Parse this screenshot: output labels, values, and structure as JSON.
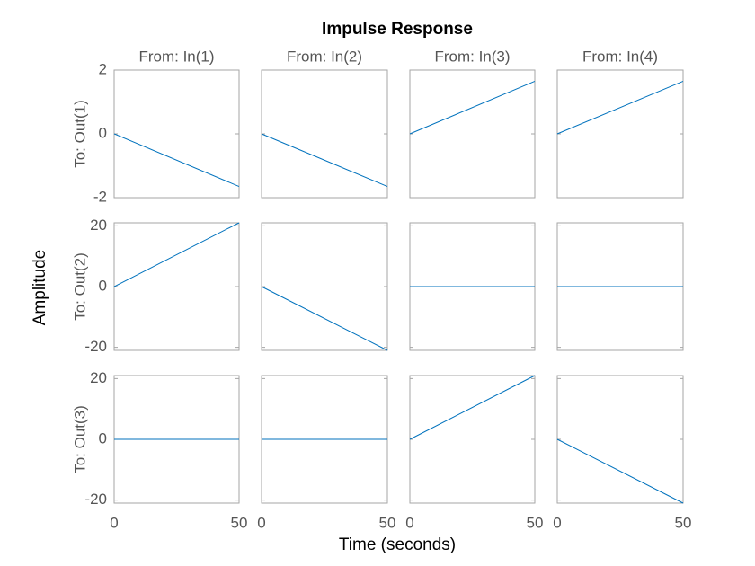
{
  "chart_data": {
    "type": "line",
    "title": "Impulse Response",
    "xlabel": "Time (seconds)",
    "ylabel": "Amplitude",
    "color": "#0072bd",
    "xlim": [
      0,
      50
    ],
    "xticks": [
      0,
      50
    ],
    "columns": [
      "From: In(1)",
      "From: In(2)",
      "From: In(3)",
      "From: In(4)"
    ],
    "rows": [
      {
        "label": "To: Out(1)",
        "ylim": [
          -2,
          2
        ],
        "yticks": [
          -2,
          0,
          2
        ],
        "panels": [
          {
            "x": [
              0,
              50
            ],
            "values": [
              0,
              -1.65
            ]
          },
          {
            "x": [
              0,
              50
            ],
            "values": [
              0,
              -1.65
            ]
          },
          {
            "x": [
              0,
              50
            ],
            "values": [
              0,
              1.65
            ]
          },
          {
            "x": [
              0,
              50
            ],
            "values": [
              0,
              1.65
            ]
          }
        ]
      },
      {
        "label": "To: Out(2)",
        "ylim": [
          -21,
          21
        ],
        "yticks": [
          -20,
          0,
          20
        ],
        "panels": [
          {
            "x": [
              0,
              50
            ],
            "values": [
              0,
              21
            ]
          },
          {
            "x": [
              0,
              50
            ],
            "values": [
              0,
              -21
            ]
          },
          {
            "x": [
              0,
              50
            ],
            "values": [
              0,
              0
            ]
          },
          {
            "x": [
              0,
              50
            ],
            "values": [
              0,
              0
            ]
          }
        ]
      },
      {
        "label": "To: Out(3)",
        "ylim": [
          -21,
          21
        ],
        "yticks": [
          -20,
          0,
          20
        ],
        "panels": [
          {
            "x": [
              0,
              50
            ],
            "values": [
              0,
              0
            ]
          },
          {
            "x": [
              0,
              50
            ],
            "values": [
              0,
              0
            ]
          },
          {
            "x": [
              0,
              50
            ],
            "values": [
              0,
              21
            ]
          },
          {
            "x": [
              0,
              50
            ],
            "values": [
              0,
              -21
            ]
          }
        ]
      }
    ]
  }
}
